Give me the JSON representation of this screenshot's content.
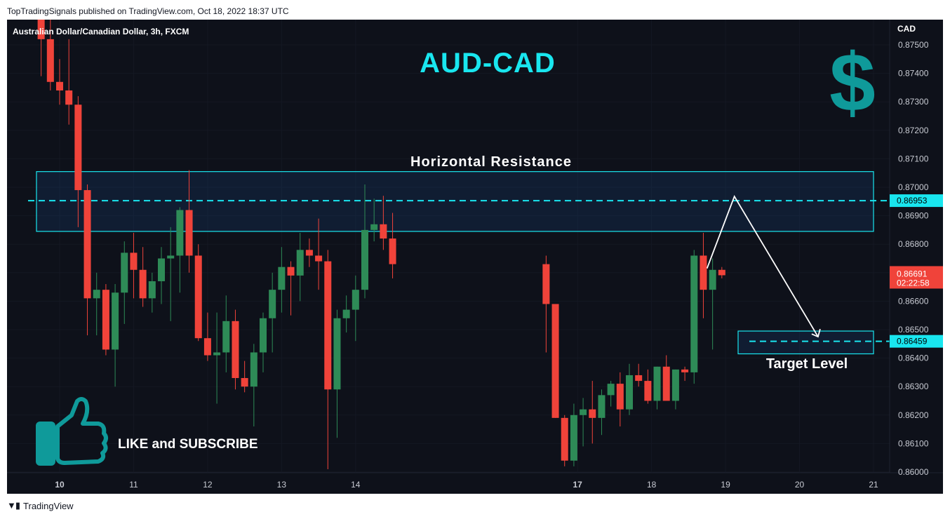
{
  "header": {
    "credit": "TopTradingSignals published on TradingView.com, Oct 18, 2022 18:37 UTC",
    "symbol_title": "Australian Dollar/Canadian Dollar, 3h, FXCM",
    "currency": "CAD"
  },
  "footer": {
    "brand": "TradingView"
  },
  "annotations": {
    "big_title": "AUD-CAD",
    "resistance_label": "Horizontal Resistance",
    "target_label": "Target Level",
    "like_label": "LIKE and SUBSCRIBE",
    "dollar_glyph": "$",
    "dollar_icon": "dollar-icon",
    "thumbs_icon": "thumbs-up-icon"
  },
  "colors": {
    "background": "#0e111a",
    "up": "#2e8b57",
    "down": "#f0433a",
    "accent": "#19e6ef",
    "dollar": "#0f9a9a"
  },
  "chart_data": {
    "type": "candlestick",
    "timeframe": "3h",
    "y_axis": {
      "min": 0.86,
      "max": 0.875,
      "ticks": [
        "0.87500",
        "0.87400",
        "0.87300",
        "0.87200",
        "0.87100",
        "0.87000",
        "0.86900",
        "0.86800",
        "0.86700",
        "0.86600",
        "0.86500",
        "0.86400",
        "0.86300",
        "0.86200",
        "0.86100",
        "0.86000"
      ]
    },
    "x_axis": {
      "labels": [
        {
          "label": "10",
          "day": 10,
          "bold": true
        },
        {
          "label": "11",
          "day": 11,
          "bold": false
        },
        {
          "label": "12",
          "day": 12,
          "bold": false
        },
        {
          "label": "13",
          "day": 13,
          "bold": false
        },
        {
          "label": "14",
          "day": 14,
          "bold": false
        },
        {
          "label": "17",
          "day": 17,
          "bold": true
        },
        {
          "label": "18",
          "day": 18,
          "bold": false
        },
        {
          "label": "19",
          "day": 19,
          "bold": false
        },
        {
          "label": "20",
          "day": 20,
          "bold": false
        },
        {
          "label": "21",
          "day": 21,
          "bold": false
        }
      ]
    },
    "price_labels": [
      {
        "value": "0.86953",
        "price": 0.86953,
        "style": "accent"
      },
      {
        "value": "0.86459",
        "price": 0.86459,
        "style": "accent"
      },
      {
        "value": "0.86691",
        "countdown": "02:22:58",
        "price": 0.86691,
        "style": "current"
      }
    ],
    "resistance_zone": {
      "low": 0.86845,
      "high": 0.87055,
      "line": 0.86953
    },
    "target_zone": {
      "low": 0.86415,
      "high": 0.86495,
      "line": 0.86459
    },
    "projection_path": [
      {
        "day": 18.75,
        "price": 0.86715
      },
      {
        "day": 19.12,
        "price": 0.86968
      },
      {
        "day": 20.25,
        "price": 0.86475
      }
    ],
    "candles": [
      {
        "o": 0.8759,
        "h": 0.8764,
        "l": 0.8739,
        "c": 0.8752
      },
      {
        "o": 0.8752,
        "h": 0.876,
        "l": 0.8734,
        "c": 0.8737
      },
      {
        "o": 0.8737,
        "h": 0.8745,
        "l": 0.8729,
        "c": 0.8734
      },
      {
        "o": 0.8734,
        "h": 0.8752,
        "l": 0.8722,
        "c": 0.8729
      },
      {
        "o": 0.8729,
        "h": 0.8732,
        "l": 0.8686,
        "c": 0.8699
      },
      {
        "o": 0.8699,
        "h": 0.8701,
        "l": 0.8648,
        "c": 0.8661
      },
      {
        "o": 0.8661,
        "h": 0.867,
        "l": 0.8648,
        "c": 0.8664
      },
      {
        "o": 0.8664,
        "h": 0.8666,
        "l": 0.8641,
        "c": 0.8643
      },
      {
        "o": 0.8643,
        "h": 0.8666,
        "l": 0.863,
        "c": 0.8663
      },
      {
        "o": 0.8663,
        "h": 0.8681,
        "l": 0.8652,
        "c": 0.8677
      },
      {
        "o": 0.8677,
        "h": 0.8684,
        "l": 0.8661,
        "c": 0.8671
      },
      {
        "o": 0.8671,
        "h": 0.8679,
        "l": 0.8658,
        "c": 0.8661
      },
      {
        "o": 0.8661,
        "h": 0.867,
        "l": 0.8656,
        "c": 0.8667
      },
      {
        "o": 0.8667,
        "h": 0.8679,
        "l": 0.8659,
        "c": 0.8675
      },
      {
        "o": 0.8675,
        "h": 0.8686,
        "l": 0.8653,
        "c": 0.8676
      },
      {
        "o": 0.8676,
        "h": 0.8693,
        "l": 0.8663,
        "c": 0.8692
      },
      {
        "o": 0.8692,
        "h": 0.8706,
        "l": 0.867,
        "c": 0.8676
      },
      {
        "o": 0.8676,
        "h": 0.868,
        "l": 0.8646,
        "c": 0.8647
      },
      {
        "o": 0.8647,
        "h": 0.8656,
        "l": 0.8639,
        "c": 0.8641
      },
      {
        "o": 0.8641,
        "h": 0.8656,
        "l": 0.8624,
        "c": 0.8642
      },
      {
        "o": 0.8642,
        "h": 0.8662,
        "l": 0.8635,
        "c": 0.8653
      },
      {
        "o": 0.8653,
        "h": 0.8657,
        "l": 0.8629,
        "c": 0.8633
      },
      {
        "o": 0.8633,
        "h": 0.8639,
        "l": 0.8628,
        "c": 0.863
      },
      {
        "o": 0.863,
        "h": 0.8645,
        "l": 0.8616,
        "c": 0.8642
      },
      {
        "o": 0.8642,
        "h": 0.8656,
        "l": 0.8635,
        "c": 0.8654
      },
      {
        "o": 0.8654,
        "h": 0.867,
        "l": 0.8642,
        "c": 0.8664
      },
      {
        "o": 0.8664,
        "h": 0.8679,
        "l": 0.8656,
        "c": 0.8672
      },
      {
        "o": 0.8672,
        "h": 0.8674,
        "l": 0.8655,
        "c": 0.8669
      },
      {
        "o": 0.8669,
        "h": 0.8684,
        "l": 0.866,
        "c": 0.8678
      },
      {
        "o": 0.8678,
        "h": 0.8682,
        "l": 0.8672,
        "c": 0.8676
      },
      {
        "o": 0.8676,
        "h": 0.8689,
        "l": 0.8664,
        "c": 0.8674
      },
      {
        "o": 0.8674,
        "h": 0.8678,
        "l": 0.8601,
        "c": 0.8629
      },
      {
        "o": 0.8629,
        "h": 0.8657,
        "l": 0.8612,
        "c": 0.8654
      },
      {
        "o": 0.8654,
        "h": 0.8662,
        "l": 0.8649,
        "c": 0.8657
      },
      {
        "o": 0.8657,
        "h": 0.8669,
        "l": 0.8646,
        "c": 0.8664
      },
      {
        "o": 0.8664,
        "h": 0.8701,
        "l": 0.8661,
        "c": 0.8685
      },
      {
        "o": 0.8685,
        "h": 0.8696,
        "l": 0.8681,
        "c": 0.8687
      },
      {
        "o": 0.8687,
        "h": 0.8697,
        "l": 0.8678,
        "c": 0.8682
      },
      {
        "o": 0.8682,
        "h": 0.8691,
        "l": 0.8668,
        "c": 0.8673
      },
      {
        "o": 0.8673,
        "h": 0.8676,
        "l": 0.8642,
        "c": 0.8659
      },
      {
        "o": 0.8659,
        "h": 0.8659,
        "l": 0.8619,
        "c": 0.8619
      },
      {
        "o": 0.8619,
        "h": 0.862,
        "l": 0.8602,
        "c": 0.8604
      },
      {
        "o": 0.8604,
        "h": 0.8624,
        "l": 0.8602,
        "c": 0.862
      },
      {
        "o": 0.862,
        "h": 0.8626,
        "l": 0.8609,
        "c": 0.8622
      },
      {
        "o": 0.8622,
        "h": 0.8632,
        "l": 0.861,
        "c": 0.8619
      },
      {
        "o": 0.8619,
        "h": 0.8629,
        "l": 0.8613,
        "c": 0.8627
      },
      {
        "o": 0.8627,
        "h": 0.8632,
        "l": 0.8623,
        "c": 0.8631
      },
      {
        "o": 0.8631,
        "h": 0.8635,
        "l": 0.8616,
        "c": 0.8622
      },
      {
        "o": 0.8622,
        "h": 0.8638,
        "l": 0.862,
        "c": 0.8634
      },
      {
        "o": 0.8634,
        "h": 0.8638,
        "l": 0.863,
        "c": 0.8632
      },
      {
        "o": 0.8632,
        "h": 0.8636,
        "l": 0.8624,
        "c": 0.8625
      },
      {
        "o": 0.8625,
        "h": 0.8637,
        "l": 0.8622,
        "c": 0.8637
      },
      {
        "o": 0.8637,
        "h": 0.8641,
        "l": 0.8626,
        "c": 0.8625
      },
      {
        "o": 0.8625,
        "h": 0.8636,
        "l": 0.8622,
        "c": 0.8636
      },
      {
        "o": 0.8636,
        "h": 0.8637,
        "l": 0.8632,
        "c": 0.8635
      },
      {
        "o": 0.8635,
        "h": 0.8678,
        "l": 0.8631,
        "c": 0.8676
      },
      {
        "o": 0.8676,
        "h": 0.8684,
        "l": 0.8654,
        "c": 0.8664
      },
      {
        "o": 0.8664,
        "h": 0.8675,
        "l": 0.8643,
        "c": 0.8671
      },
      {
        "o": 0.8671,
        "h": 0.8672,
        "l": 0.8668,
        "c": 0.86691
      }
    ]
  }
}
